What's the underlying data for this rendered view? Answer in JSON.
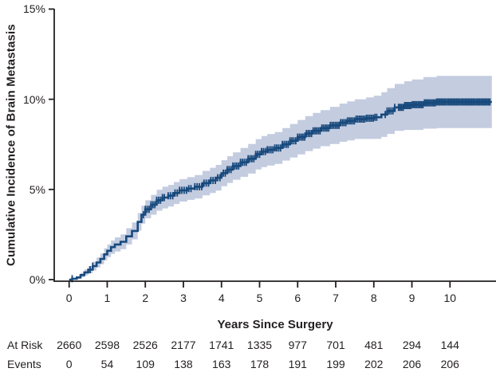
{
  "figure": {
    "background": "#ffffff",
    "curve_color": "#17497c",
    "band_color": "#c4cce0",
    "axis_color": "#231f20",
    "text_color": "#231f20"
  },
  "chart_data": {
    "type": "line",
    "subtype": "cumulative-incidence-step-curve-with-confidence-band-and-censor-marks",
    "title": "",
    "xlabel": "Years Since Surgery",
    "ylabel": "Cumulative Incidence of Brain Metastasis",
    "xlim": [
      0,
      11.2
    ],
    "ylim": [
      0,
      15
    ],
    "grid": false,
    "legend": "none",
    "x_ticks": [
      0,
      1,
      2,
      3,
      4,
      5,
      6,
      7,
      8,
      9,
      10
    ],
    "y_ticks": [
      {
        "value": 0,
        "label": "0%"
      },
      {
        "value": 5,
        "label": "5%"
      },
      {
        "value": 10,
        "label": "10%"
      },
      {
        "value": 15,
        "label": "15%"
      }
    ],
    "series": [
      {
        "name": "cumulative-incidence-of-brain-metastasis",
        "note": "steps are [years, estimate_pct, ci_halfwidth_pct]; estimate holds until next step",
        "steps": [
          [
            0.0,
            0.0,
            0.0
          ],
          [
            0.08,
            0.05,
            0.05
          ],
          [
            0.2,
            0.12,
            0.08
          ],
          [
            0.3,
            0.25,
            0.12
          ],
          [
            0.4,
            0.4,
            0.16
          ],
          [
            0.5,
            0.55,
            0.2
          ],
          [
            0.62,
            0.75,
            0.24
          ],
          [
            0.72,
            0.95,
            0.28
          ],
          [
            0.82,
            1.15,
            0.3
          ],
          [
            0.92,
            1.4,
            0.33
          ],
          [
            1.0,
            1.6,
            0.35
          ],
          [
            1.1,
            1.8,
            0.37
          ],
          [
            1.2,
            1.95,
            0.39
          ],
          [
            1.35,
            2.1,
            0.41
          ],
          [
            1.5,
            2.4,
            0.45
          ],
          [
            1.65,
            2.7,
            0.47
          ],
          [
            1.8,
            3.2,
            0.49
          ],
          [
            1.9,
            3.6,
            0.5
          ],
          [
            2.0,
            3.9,
            0.5
          ],
          [
            2.15,
            4.15,
            0.55
          ],
          [
            2.3,
            4.4,
            0.58
          ],
          [
            2.45,
            4.55,
            0.6
          ],
          [
            2.6,
            4.65,
            0.6
          ],
          [
            2.75,
            4.8,
            0.61
          ],
          [
            2.9,
            4.95,
            0.62
          ],
          [
            3.1,
            5.05,
            0.63
          ],
          [
            3.3,
            5.15,
            0.65
          ],
          [
            3.5,
            5.35,
            0.68
          ],
          [
            3.7,
            5.5,
            0.7
          ],
          [
            3.85,
            5.65,
            0.71
          ],
          [
            4.0,
            5.9,
            0.72
          ],
          [
            4.15,
            6.1,
            0.74
          ],
          [
            4.3,
            6.3,
            0.76
          ],
          [
            4.5,
            6.5,
            0.8
          ],
          [
            4.7,
            6.7,
            0.82
          ],
          [
            4.9,
            6.95,
            0.84
          ],
          [
            5.05,
            7.1,
            0.86
          ],
          [
            5.2,
            7.2,
            0.87
          ],
          [
            5.4,
            7.3,
            0.88
          ],
          [
            5.6,
            7.5,
            0.9
          ],
          [
            5.8,
            7.7,
            0.93
          ],
          [
            6.0,
            7.9,
            0.95
          ],
          [
            6.2,
            8.1,
            0.97
          ],
          [
            6.4,
            8.25,
            0.99
          ],
          [
            6.6,
            8.4,
            1.0
          ],
          [
            6.85,
            8.55,
            1.03
          ],
          [
            7.1,
            8.7,
            1.06
          ],
          [
            7.3,
            8.8,
            1.08
          ],
          [
            7.5,
            8.9,
            1.1
          ],
          [
            7.8,
            8.95,
            1.15
          ],
          [
            8.0,
            9.0,
            1.2
          ],
          [
            8.2,
            9.15,
            1.24
          ],
          [
            8.35,
            9.35,
            1.27
          ],
          [
            8.55,
            9.55,
            1.3
          ],
          [
            8.8,
            9.65,
            1.35
          ],
          [
            9.0,
            9.7,
            1.4
          ],
          [
            9.3,
            9.8,
            1.43
          ],
          [
            9.65,
            9.85,
            1.45
          ],
          [
            11.1,
            9.85,
            1.45
          ]
        ],
        "censor_marks": {
          "singles": [
            0.08,
            0.55,
            0.62
          ],
          "segments": [
            {
              "from": 1.95,
              "to": 2.5,
              "step": 0.05
            },
            {
              "from": 2.6,
              "to": 3.2,
              "step": 0.06
            },
            {
              "from": 3.3,
              "to": 4.0,
              "step": 0.06
            },
            {
              "from": 4.05,
              "to": 6.0,
              "step": 0.05
            },
            {
              "from": 6.05,
              "to": 8.1,
              "step": 0.045
            },
            {
              "from": 8.3,
              "to": 8.55,
              "step": 0.05
            },
            {
              "from": 8.65,
              "to": 11.05,
              "step": 0.04
            }
          ]
        }
      }
    ]
  },
  "risk_table": {
    "rows": [
      {
        "label": "At Risk",
        "values": [
          "2660",
          "2598",
          "2526",
          "2177",
          "1741",
          "1335",
          "977",
          "701",
          "481",
          "294",
          "144"
        ]
      },
      {
        "label": "Events",
        "values": [
          "0",
          "54",
          "109",
          "138",
          "163",
          "178",
          "191",
          "199",
          "202",
          "206",
          "206"
        ]
      }
    ]
  }
}
